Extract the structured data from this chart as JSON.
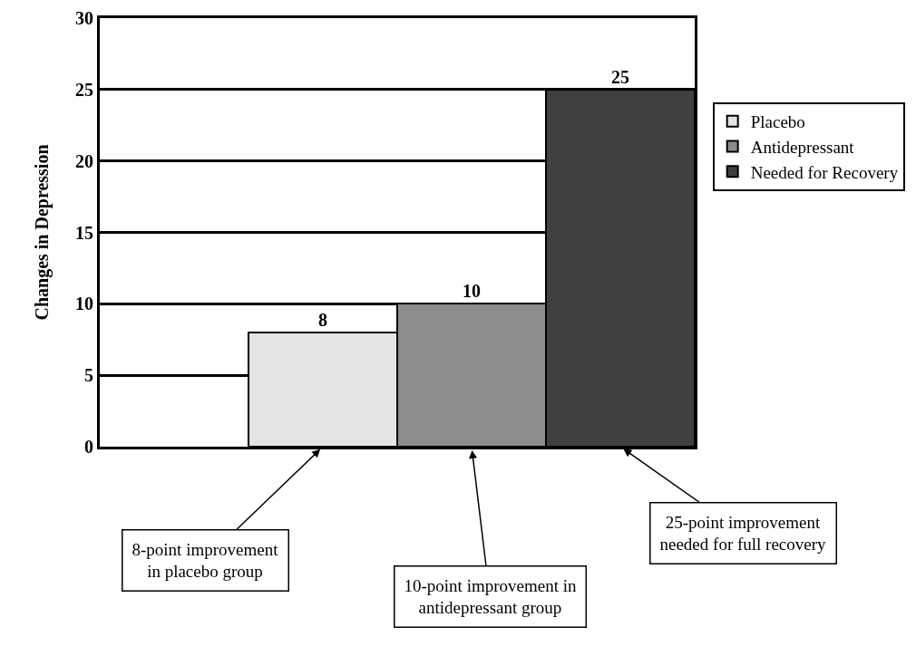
{
  "chart_data": {
    "type": "bar",
    "ylabel": "Changes in Depression",
    "categories": [
      null,
      null,
      null,
      null
    ],
    "series": [
      {
        "name": "Placebo",
        "color": "#e4e4e4",
        "values": [
          null,
          8,
          null,
          null
        ]
      },
      {
        "name": "Antidepressant",
        "color": "#8c8c8c",
        "values": [
          null,
          null,
          10,
          null
        ]
      },
      {
        "name": "Needed for Recovery",
        "color": "#404040",
        "values": [
          null,
          null,
          null,
          25
        ]
      }
    ],
    "ylim": [
      0,
      30
    ],
    "yticks": [
      0,
      5,
      10,
      15,
      20,
      25,
      30
    ],
    "grid": "y",
    "legend": "right",
    "data_labels": true,
    "tick_labels": "y",
    "annotations": [
      "8-point improvement\nin placebo group",
      "10-point improvement in\nantidepressant group",
      "25-point improvement\nneeded for full recovery"
    ]
  }
}
